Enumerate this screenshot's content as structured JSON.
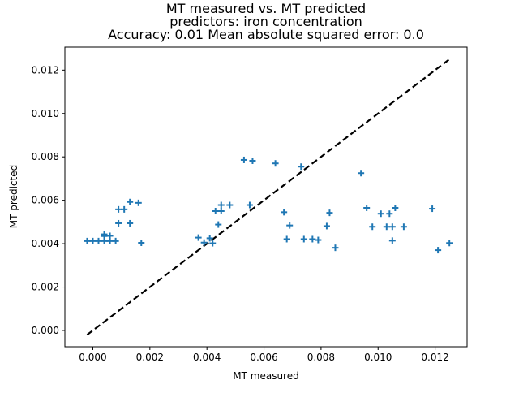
{
  "chart_data": {
    "type": "scatter",
    "title": [
      "MT measured vs. MT predicted",
      "predictors: iron concentration",
      "Accuracy: 0.01 Mean absolute squared error: 0.0"
    ],
    "xlabel": "MT measured",
    "ylabel": "MT predicted",
    "xlim": [
      -0.00098,
      0.01312
    ],
    "ylim": [
      -0.00075,
      0.01306
    ],
    "xticks": [
      "0.000",
      "0.002",
      "0.004",
      "0.006",
      "0.008",
      "0.010",
      "0.012"
    ],
    "xtick_values": [
      0,
      0.002,
      0.004,
      0.006,
      0.008,
      0.01,
      0.012
    ],
    "yticks": [
      "0.000",
      "0.002",
      "0.004",
      "0.006",
      "0.008",
      "0.010",
      "0.012"
    ],
    "ytick_values": [
      0,
      0.002,
      0.004,
      0.006,
      0.008,
      0.01,
      0.012
    ],
    "grid": false,
    "marker": "+",
    "marker_color": "#1f77b4",
    "reference_line": {
      "from": [
        -0.0002,
        -0.0002
      ],
      "to": [
        0.0125,
        0.0125
      ],
      "color": "#000000",
      "style": "dashed"
    },
    "points": [
      [
        -0.0002,
        0.00412
      ],
      [
        0.0,
        0.00412
      ],
      [
        0.0002,
        0.00412
      ],
      [
        0.0004,
        0.00412
      ],
      [
        0.0004,
        0.00435
      ],
      [
        0.0004,
        0.00443
      ],
      [
        0.0006,
        0.00436
      ],
      [
        0.0006,
        0.00412
      ],
      [
        0.0008,
        0.00412
      ],
      [
        0.0009,
        0.00494
      ],
      [
        0.0009,
        0.00558
      ],
      [
        0.0011,
        0.00558
      ],
      [
        0.0013,
        0.00592
      ],
      [
        0.0013,
        0.00494
      ],
      [
        0.0016,
        0.00588
      ],
      [
        0.0017,
        0.00404
      ],
      [
        0.0037,
        0.00428
      ],
      [
        0.0039,
        0.00405
      ],
      [
        0.0041,
        0.00425
      ],
      [
        0.0042,
        0.00402
      ],
      [
        0.0043,
        0.0055
      ],
      [
        0.0044,
        0.00488
      ],
      [
        0.0045,
        0.00578
      ],
      [
        0.0045,
        0.0055
      ],
      [
        0.0048,
        0.00578
      ],
      [
        0.0053,
        0.00786
      ],
      [
        0.0055,
        0.00578
      ],
      [
        0.0056,
        0.00782
      ],
      [
        0.0064,
        0.0077
      ],
      [
        0.0067,
        0.00545
      ],
      [
        0.0068,
        0.00421
      ],
      [
        0.0069,
        0.00484
      ],
      [
        0.0073,
        0.00755
      ],
      [
        0.0074,
        0.00421
      ],
      [
        0.0077,
        0.00421
      ],
      [
        0.0079,
        0.00417
      ],
      [
        0.0082,
        0.00481
      ],
      [
        0.0083,
        0.00542
      ],
      [
        0.0085,
        0.00381
      ],
      [
        0.0094,
        0.00725
      ],
      [
        0.0096,
        0.00565
      ],
      [
        0.0098,
        0.00478
      ],
      [
        0.0101,
        0.00538
      ],
      [
        0.0103,
        0.00478
      ],
      [
        0.0104,
        0.00538
      ],
      [
        0.0105,
        0.00478
      ],
      [
        0.0105,
        0.00414
      ],
      [
        0.0106,
        0.00565
      ],
      [
        0.0109,
        0.00478
      ],
      [
        0.0119,
        0.00561
      ],
      [
        0.0121,
        0.0037
      ],
      [
        0.0125,
        0.00403
      ]
    ]
  }
}
